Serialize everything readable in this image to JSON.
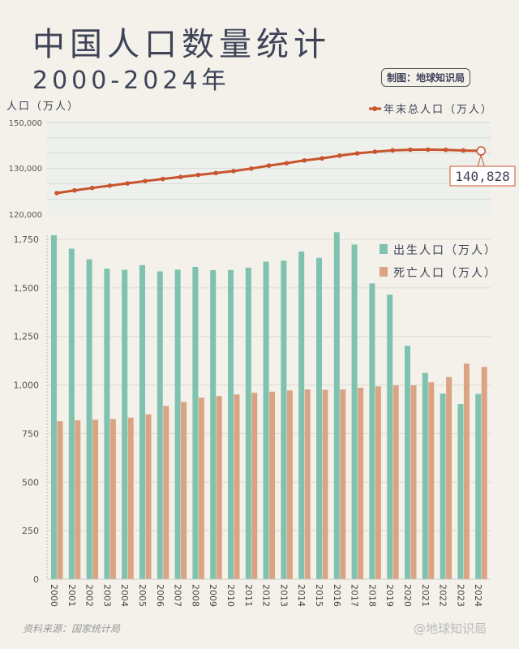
{
  "header": {
    "title": "中国人口数量统计",
    "subtitle": "2000-2024年",
    "credit": "制图：地球知识局"
  },
  "footer": {
    "source": "资料来源：国家统计局",
    "brand": "@地球知识局"
  },
  "colors": {
    "births": "#7fc2b0",
    "deaths": "#d9a384",
    "population": "#c8552e",
    "background": "#f3f1ea"
  },
  "chart_data": [
    {
      "type": "line",
      "ylabel": "人口（万人）",
      "legend": "年末总人口（万人）",
      "legend_position": "top-right",
      "y_ticks": [
        "150,000",
        "130,000",
        "120,000"
      ],
      "x": [
        2000,
        2001,
        2002,
        2003,
        2004,
        2005,
        2006,
        2007,
        2008,
        2009,
        2010,
        2011,
        2012,
        2013,
        2014,
        2015,
        2016,
        2017,
        2018,
        2019,
        2020,
        2021,
        2022,
        2023,
        2024
      ],
      "values": [
        126743,
        127627,
        128453,
        129227,
        129988,
        130756,
        131448,
        132129,
        132802,
        133450,
        134091,
        134916,
        135922,
        136726,
        137646,
        138326,
        139232,
        140011,
        140541,
        141008,
        141212,
        141260,
        141175,
        140967,
        140828
      ],
      "annotation": "140,828",
      "grid": true
    },
    {
      "type": "bar",
      "ylim": [
        0,
        1750
      ],
      "y_ticks": [
        "0",
        "250",
        "500",
        "750",
        "1,000",
        "1,250",
        "1,500",
        "1,750"
      ],
      "categories": [
        "2000",
        "2001",
        "2002",
        "2003",
        "2004",
        "2005",
        "2006",
        "2007",
        "2008",
        "2009",
        "2010",
        "2011",
        "2012",
        "2013",
        "2014",
        "2015",
        "2016",
        "2017",
        "2018",
        "2019",
        "2020",
        "2021",
        "2022",
        "2023",
        "2024"
      ],
      "series": [
        {
          "name": "出生人口（万人）",
          "values": [
            1771,
            1702,
            1647,
            1599,
            1593,
            1617,
            1585,
            1594,
            1608,
            1591,
            1592,
            1604,
            1635,
            1640,
            1687,
            1655,
            1786,
            1723,
            1523,
            1465,
            1202,
            1062,
            956,
            902,
            954
          ]
        },
        {
          "name": "死亡人口（万人）",
          "values": [
            814,
            818,
            821,
            825,
            832,
            849,
            892,
            913,
            935,
            943,
            951,
            960,
            966,
            972,
            977,
            975,
            977,
            986,
            993,
            998,
            998,
            1014,
            1041,
            1110,
            1093
          ]
        }
      ],
      "legend_position": "top-right",
      "grid": true
    }
  ]
}
